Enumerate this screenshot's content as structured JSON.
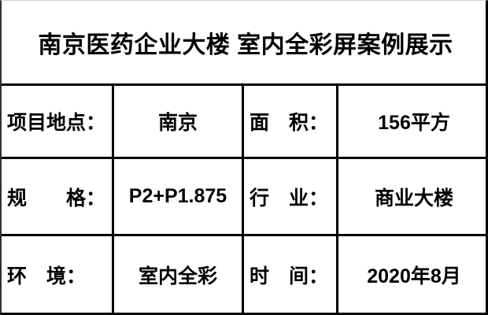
{
  "title": "南京医药企业大楼 室内全彩屏案例展示",
  "colors": {
    "background": "#ffffff",
    "text": "#000000",
    "grid_line": "#000000",
    "outer_top_edge": "#ccd1dc"
  },
  "table": {
    "rows": [
      {
        "label1": "项目地点：",
        "value1": "南京",
        "label2": "面　积：",
        "value2": "156平方"
      },
      {
        "label1": "规　　格：",
        "value1": "P2+P1.875",
        "label2": "行　业：",
        "value2": "商业大楼"
      },
      {
        "label1": "环　境：",
        "value1": "室内全彩",
        "label2": "时　间：",
        "value2": "2020年8月"
      }
    ]
  }
}
